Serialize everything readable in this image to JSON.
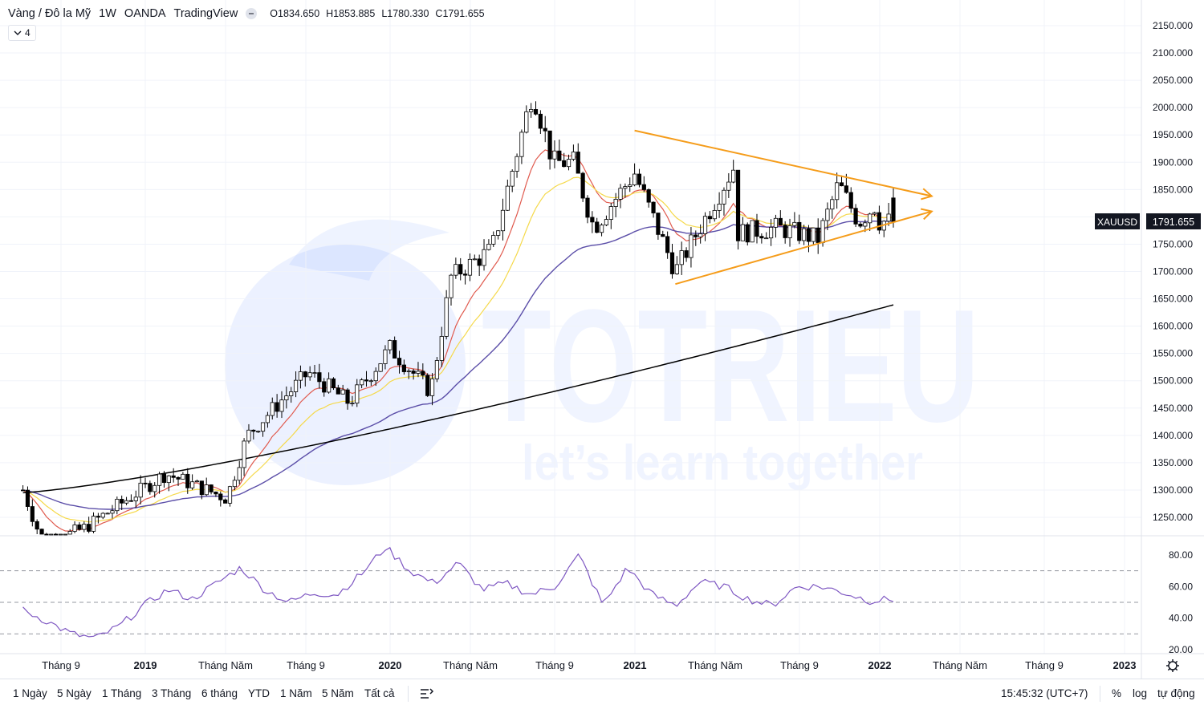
{
  "header": {
    "symbol": "Vàng / Đô la Mỹ",
    "interval": "1W",
    "broker": "OANDA",
    "platform": "TradingView",
    "ohlc": {
      "open": "O1834.650",
      "high": "H1853.885",
      "low": "L1780.330",
      "close": "C1791.655"
    },
    "indicators_count": "4"
  },
  "watermark": {
    "brand": "TOTRIEU",
    "tagline": "let’s learn together"
  },
  "price_tag": {
    "symbol": "XAUUSD",
    "value": "1791.655"
  },
  "colors": {
    "up": "#ffffff",
    "down": "#000000",
    "wick": "#000000",
    "ema_fast": "#e05a4e",
    "ema_mid": "#f5d94a",
    "ema_slow": "#5b4ea8",
    "ma_long": "#000000",
    "trendline": "#f59c1a",
    "rsi": "#7e57c2",
    "watermark": "#2962ff"
  },
  "x_axis": {
    "labels": [
      "Tháng 9",
      "2019",
      "Tháng Năm",
      "Tháng 9",
      "2020",
      "Tháng Năm",
      "Tháng 9",
      "2021",
      "Tháng Năm",
      "Tháng 9",
      "2022",
      "Tháng Năm",
      "Tháng 9",
      "2023"
    ],
    "bold": [
      false,
      true,
      false,
      false,
      true,
      false,
      false,
      true,
      false,
      false,
      true,
      false,
      false,
      true
    ]
  },
  "rsi_axis": {
    "ticks": [
      "80.00",
      "60.00",
      "40.00",
      "20.00"
    ],
    "levels": [
      70,
      50,
      30
    ]
  },
  "bottom_bar": {
    "ranges": [
      "1 Ngày",
      "5 Ngày",
      "1 Tháng",
      "3 Tháng",
      "6 tháng",
      "YTD",
      "1 Năm",
      "5 Năm",
      "Tất cả"
    ],
    "time": "15:45:32 (UTC+7)",
    "percent": "%",
    "log": "log",
    "auto": "tự động"
  },
  "chart_data": {
    "type": "candlestick",
    "title": "Vàng / Đô la Mỹ · 1W · OANDA",
    "ylim": [
      1220,
      2160
    ],
    "y_ticks": [
      "2150.000",
      "2100.000",
      "2050.000",
      "2000.000",
      "1950.000",
      "1900.000",
      "1850.000",
      "1800.000",
      "1750.000",
      "1700.000",
      "1650.000",
      "1600.000",
      "1550.000",
      "1500.000",
      "1450.000",
      "1400.000",
      "1350.000",
      "1300.000",
      "1250.000"
    ],
    "keypoints": [
      {
        "date": "2018-07",
        "close": 1300
      },
      {
        "date": "2018-08",
        "close": 1200
      },
      {
        "date": "2018-10",
        "close": 1230
      },
      {
        "date": "2019-02",
        "close": 1330
      },
      {
        "date": "2019-05",
        "close": 1285
      },
      {
        "date": "2019-06",
        "close": 1400
      },
      {
        "date": "2019-09",
        "close": 1515
      },
      {
        "date": "2019-11",
        "close": 1460
      },
      {
        "date": "2020-01",
        "close": 1560
      },
      {
        "date": "2020-03",
        "close": 1480
      },
      {
        "date": "2020-04",
        "close": 1690
      },
      {
        "date": "2020-06",
        "close": 1740
      },
      {
        "date": "2020-08",
        "close": 2030
      },
      {
        "date": "2020-09",
        "close": 1900
      },
      {
        "date": "2020-10",
        "close": 1900
      },
      {
        "date": "2020-11",
        "close": 1780
      },
      {
        "date": "2021-01",
        "close": 1880
      },
      {
        "date": "2021-03",
        "close": 1700
      },
      {
        "date": "2021-06",
        "close": 1900
      },
      {
        "date": "2021-06",
        "close": 1770
      },
      {
        "date": "2021-08",
        "close": 1780
      },
      {
        "date": "2021-10",
        "close": 1760
      },
      {
        "date": "2021-11",
        "close": 1860
      },
      {
        "date": "2021-12",
        "close": 1790
      },
      {
        "date": "2022-01",
        "close": 1830
      },
      {
        "date": "2022-01",
        "close": 1791.655
      }
    ],
    "last": {
      "open": 1834.65,
      "high": 1853.885,
      "low": 1780.33,
      "close": 1791.655
    },
    "trendlines": [
      {
        "name": "upper",
        "from": {
          "date": "2021-01",
          "price": 1958
        },
        "to": {
          "date": "2022-02",
          "price": 1838
        }
      },
      {
        "name": "lower",
        "from": {
          "date": "2021-03",
          "price": 1677
        },
        "to": {
          "date": "2022-02",
          "price": 1810
        }
      }
    ],
    "rsi": {
      "ylim": [
        15,
        90
      ],
      "values": [
        45,
        38,
        30,
        27,
        35,
        48,
        58,
        52,
        62,
        72,
        58,
        50,
        56,
        55,
        68,
        85,
        70,
        62,
        75,
        58,
        62,
        55,
        60,
        80,
        48,
        72,
        55,
        48,
        63,
        60,
        52,
        48,
        60,
        60,
        56,
        51,
        52
      ]
    },
    "moving_averages": [
      "EMA fast (red)",
      "EMA mid (yellow)",
      "EMA slow (purple)",
      "MA 200 (black)"
    ]
  }
}
